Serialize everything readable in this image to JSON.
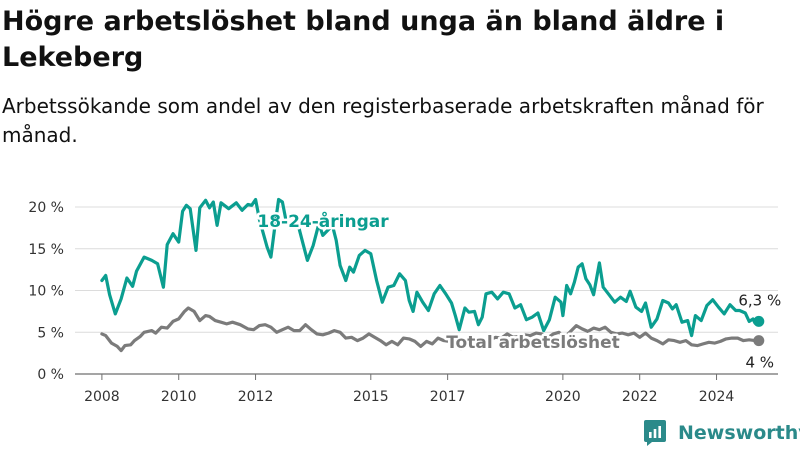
{
  "title": "Högre arbetslöshet bland unga än bland äldre i Lekeberg",
  "subtitle": "Arbetssökande som andel av den registerbaserade arbetskraften månad för månad.",
  "brand": {
    "name": "Newsworthy",
    "color": "#2b8a8a"
  },
  "chart_data": {
    "type": "line",
    "ylim": [
      0,
      20
    ],
    "y_ticks": [
      0,
      5,
      10,
      15,
      20
    ],
    "y_tick_labels": [
      "0 %",
      "5 %",
      "10 %",
      "15 %",
      "20 %"
    ],
    "x_ticks": [
      2008,
      2010,
      2012,
      2015,
      2017,
      2020,
      2022,
      2024
    ],
    "xlim": [
      2007.3,
      2025.6
    ],
    "grid": true,
    "series": [
      {
        "name": "18-24-åringar",
        "color": "#0b9e90",
        "end_label": "6,3 %",
        "points": [
          [
            2008.0,
            11.2
          ],
          [
            2008.1,
            11.8
          ],
          [
            2008.2,
            9.5
          ],
          [
            2008.35,
            7.2
          ],
          [
            2008.5,
            9.0
          ],
          [
            2008.65,
            11.5
          ],
          [
            2008.8,
            10.5
          ],
          [
            2008.9,
            12.3
          ],
          [
            2009.1,
            14.0
          ],
          [
            2009.3,
            13.6
          ],
          [
            2009.45,
            13.2
          ],
          [
            2009.6,
            10.4
          ],
          [
            2009.7,
            15.5
          ],
          [
            2009.85,
            16.8
          ],
          [
            2010.0,
            15.8
          ],
          [
            2010.1,
            19.5
          ],
          [
            2010.2,
            20.2
          ],
          [
            2010.3,
            19.8
          ],
          [
            2010.45,
            14.8
          ],
          [
            2010.55,
            19.9
          ],
          [
            2010.7,
            20.8
          ],
          [
            2010.8,
            19.9
          ],
          [
            2010.9,
            20.6
          ],
          [
            2011.0,
            17.8
          ],
          [
            2011.1,
            20.5
          ],
          [
            2011.3,
            19.8
          ],
          [
            2011.5,
            20.5
          ],
          [
            2011.65,
            19.6
          ],
          [
            2011.8,
            20.3
          ],
          [
            2011.9,
            20.2
          ],
          [
            2012.0,
            20.9
          ],
          [
            2012.1,
            18.5
          ],
          [
            2012.3,
            15.2
          ],
          [
            2012.4,
            14.0
          ],
          [
            2012.5,
            17.6
          ],
          [
            2012.6,
            20.9
          ],
          [
            2012.7,
            20.6
          ],
          [
            2012.8,
            18.2
          ],
          [
            2012.9,
            17.5
          ],
          [
            2013.1,
            18.0
          ],
          [
            2013.2,
            16.2
          ],
          [
            2013.35,
            13.6
          ],
          [
            2013.5,
            15.4
          ],
          [
            2013.65,
            18.0
          ],
          [
            2013.75,
            16.6
          ],
          [
            2013.9,
            17.3
          ],
          [
            2014.0,
            17.8
          ],
          [
            2014.1,
            16.0
          ],
          [
            2014.2,
            13.0
          ],
          [
            2014.35,
            11.2
          ],
          [
            2014.45,
            12.8
          ],
          [
            2014.55,
            12.2
          ],
          [
            2014.7,
            14.2
          ],
          [
            2014.85,
            14.8
          ],
          [
            2015.0,
            14.4
          ],
          [
            2015.15,
            11.2
          ],
          [
            2015.3,
            8.6
          ],
          [
            2015.45,
            10.4
          ],
          [
            2015.6,
            10.6
          ],
          [
            2015.75,
            12.0
          ],
          [
            2015.9,
            11.2
          ],
          [
            2016.0,
            8.8
          ],
          [
            2016.1,
            7.5
          ],
          [
            2016.2,
            9.8
          ],
          [
            2016.35,
            8.6
          ],
          [
            2016.5,
            7.6
          ],
          [
            2016.65,
            9.6
          ],
          [
            2016.8,
            10.6
          ],
          [
            2016.95,
            9.6
          ],
          [
            2017.1,
            8.5
          ],
          [
            2017.2,
            7.0
          ],
          [
            2017.3,
            5.3
          ],
          [
            2017.45,
            7.9
          ],
          [
            2017.55,
            7.4
          ],
          [
            2017.7,
            7.5
          ],
          [
            2017.8,
            5.9
          ],
          [
            2017.9,
            6.8
          ],
          [
            2018.0,
            9.6
          ],
          [
            2018.15,
            9.8
          ],
          [
            2018.3,
            9.0
          ],
          [
            2018.45,
            9.8
          ],
          [
            2018.6,
            9.6
          ],
          [
            2018.75,
            7.9
          ],
          [
            2018.9,
            8.3
          ],
          [
            2019.05,
            6.5
          ],
          [
            2019.2,
            6.8
          ],
          [
            2019.35,
            7.3
          ],
          [
            2019.5,
            5.2
          ],
          [
            2019.65,
            6.5
          ],
          [
            2019.8,
            9.2
          ],
          [
            2019.95,
            8.6
          ],
          [
            2020.0,
            7.0
          ],
          [
            2020.1,
            10.6
          ],
          [
            2020.2,
            9.6
          ],
          [
            2020.3,
            11.0
          ],
          [
            2020.4,
            12.8
          ],
          [
            2020.5,
            13.2
          ],
          [
            2020.6,
            11.4
          ],
          [
            2020.7,
            10.7
          ],
          [
            2020.8,
            9.5
          ],
          [
            2020.95,
            13.3
          ],
          [
            2021.05,
            10.4
          ],
          [
            2021.2,
            9.5
          ],
          [
            2021.35,
            8.6
          ],
          [
            2021.5,
            9.2
          ],
          [
            2021.65,
            8.7
          ],
          [
            2021.75,
            9.9
          ],
          [
            2021.9,
            8.0
          ],
          [
            2022.05,
            7.5
          ],
          [
            2022.15,
            8.5
          ],
          [
            2022.3,
            5.6
          ],
          [
            2022.45,
            6.6
          ],
          [
            2022.6,
            8.8
          ],
          [
            2022.75,
            8.5
          ],
          [
            2022.85,
            7.8
          ],
          [
            2022.95,
            8.3
          ],
          [
            2023.1,
            6.2
          ],
          [
            2023.25,
            6.4
          ],
          [
            2023.35,
            4.6
          ],
          [
            2023.45,
            7.0
          ],
          [
            2023.6,
            6.4
          ],
          [
            2023.75,
            8.2
          ],
          [
            2023.9,
            8.9
          ],
          [
            2024.05,
            8.0
          ],
          [
            2024.2,
            7.2
          ],
          [
            2024.35,
            8.3
          ],
          [
            2024.5,
            7.6
          ],
          [
            2024.6,
            7.6
          ],
          [
            2024.75,
            7.3
          ],
          [
            2024.85,
            6.3
          ],
          [
            2024.95,
            6.6
          ],
          [
            2025.0,
            6.1
          ],
          [
            2025.1,
            6.3
          ]
        ]
      },
      {
        "name": "Total arbetslöshet",
        "color": "#7b7b7b",
        "end_label": "4 %",
        "points": [
          [
            2008.0,
            4.8
          ],
          [
            2008.1,
            4.6
          ],
          [
            2008.25,
            3.7
          ],
          [
            2008.4,
            3.3
          ],
          [
            2008.5,
            2.8
          ],
          [
            2008.6,
            3.4
          ],
          [
            2008.75,
            3.5
          ],
          [
            2008.85,
            4.0
          ],
          [
            2009.0,
            4.5
          ],
          [
            2009.1,
            5.0
          ],
          [
            2009.3,
            5.2
          ],
          [
            2009.4,
            4.9
          ],
          [
            2009.55,
            5.6
          ],
          [
            2009.7,
            5.5
          ],
          [
            2009.85,
            6.3
          ],
          [
            2010.0,
            6.6
          ],
          [
            2010.15,
            7.5
          ],
          [
            2010.25,
            7.9
          ],
          [
            2010.4,
            7.5
          ],
          [
            2010.55,
            6.4
          ],
          [
            2010.7,
            7.0
          ],
          [
            2010.8,
            6.9
          ],
          [
            2010.95,
            6.4
          ],
          [
            2011.1,
            6.2
          ],
          [
            2011.25,
            6.0
          ],
          [
            2011.4,
            6.2
          ],
          [
            2011.6,
            5.9
          ],
          [
            2011.8,
            5.4
          ],
          [
            2011.95,
            5.3
          ],
          [
            2012.1,
            5.8
          ],
          [
            2012.25,
            5.9
          ],
          [
            2012.4,
            5.6
          ],
          [
            2012.55,
            5.0
          ],
          [
            2012.7,
            5.3
          ],
          [
            2012.85,
            5.6
          ],
          [
            2013.0,
            5.2
          ],
          [
            2013.15,
            5.2
          ],
          [
            2013.3,
            5.9
          ],
          [
            2013.45,
            5.3
          ],
          [
            2013.6,
            4.8
          ],
          [
            2013.75,
            4.7
          ],
          [
            2013.9,
            4.9
          ],
          [
            2014.05,
            5.2
          ],
          [
            2014.2,
            5.0
          ],
          [
            2014.35,
            4.3
          ],
          [
            2014.5,
            4.4
          ],
          [
            2014.65,
            4.0
          ],
          [
            2014.8,
            4.3
          ],
          [
            2014.95,
            4.8
          ],
          [
            2015.1,
            4.4
          ],
          [
            2015.25,
            4.0
          ],
          [
            2015.4,
            3.5
          ],
          [
            2015.55,
            3.9
          ],
          [
            2015.7,
            3.5
          ],
          [
            2015.85,
            4.3
          ],
          [
            2016.0,
            4.2
          ],
          [
            2016.15,
            3.9
          ],
          [
            2016.3,
            3.3
          ],
          [
            2016.45,
            3.9
          ],
          [
            2016.6,
            3.6
          ],
          [
            2016.75,
            4.3
          ],
          [
            2016.9,
            4.0
          ],
          [
            2017.05,
            3.9
          ],
          [
            2017.2,
            3.5
          ],
          [
            2017.35,
            3.0
          ],
          [
            2017.5,
            3.8
          ],
          [
            2017.65,
            3.3
          ],
          [
            2017.8,
            3.5
          ],
          [
            2017.95,
            4.0
          ],
          [
            2018.1,
            4.1
          ],
          [
            2018.25,
            4.4
          ],
          [
            2018.4,
            4.3
          ],
          [
            2018.55,
            4.8
          ],
          [
            2018.7,
            4.4
          ],
          [
            2018.85,
            4.5
          ],
          [
            2019.0,
            4.7
          ],
          [
            2019.15,
            4.6
          ],
          [
            2019.3,
            4.9
          ],
          [
            2019.45,
            4.8
          ],
          [
            2019.6,
            4.3
          ],
          [
            2019.75,
            4.8
          ],
          [
            2019.9,
            5.0
          ],
          [
            2020.05,
            4.4
          ],
          [
            2020.2,
            5.1
          ],
          [
            2020.35,
            5.8
          ],
          [
            2020.5,
            5.4
          ],
          [
            2020.65,
            5.1
          ],
          [
            2020.8,
            5.5
          ],
          [
            2020.95,
            5.3
          ],
          [
            2021.1,
            5.6
          ],
          [
            2021.25,
            5.0
          ],
          [
            2021.4,
            4.8
          ],
          [
            2021.55,
            4.9
          ],
          [
            2021.7,
            4.7
          ],
          [
            2021.85,
            4.9
          ],
          [
            2022.0,
            4.4
          ],
          [
            2022.15,
            4.9
          ],
          [
            2022.3,
            4.3
          ],
          [
            2022.45,
            4.0
          ],
          [
            2022.6,
            3.6
          ],
          [
            2022.75,
            4.1
          ],
          [
            2022.9,
            4.0
          ],
          [
            2023.05,
            3.8
          ],
          [
            2023.2,
            4.0
          ],
          [
            2023.35,
            3.5
          ],
          [
            2023.5,
            3.4
          ],
          [
            2023.65,
            3.6
          ],
          [
            2023.8,
            3.8
          ],
          [
            2023.95,
            3.7
          ],
          [
            2024.1,
            3.9
          ],
          [
            2024.25,
            4.2
          ],
          [
            2024.4,
            4.3
          ],
          [
            2024.55,
            4.3
          ],
          [
            2024.7,
            4.0
          ],
          [
            2024.85,
            4.1
          ],
          [
            2025.0,
            4.0
          ],
          [
            2025.1,
            4.0
          ]
        ]
      }
    ]
  }
}
